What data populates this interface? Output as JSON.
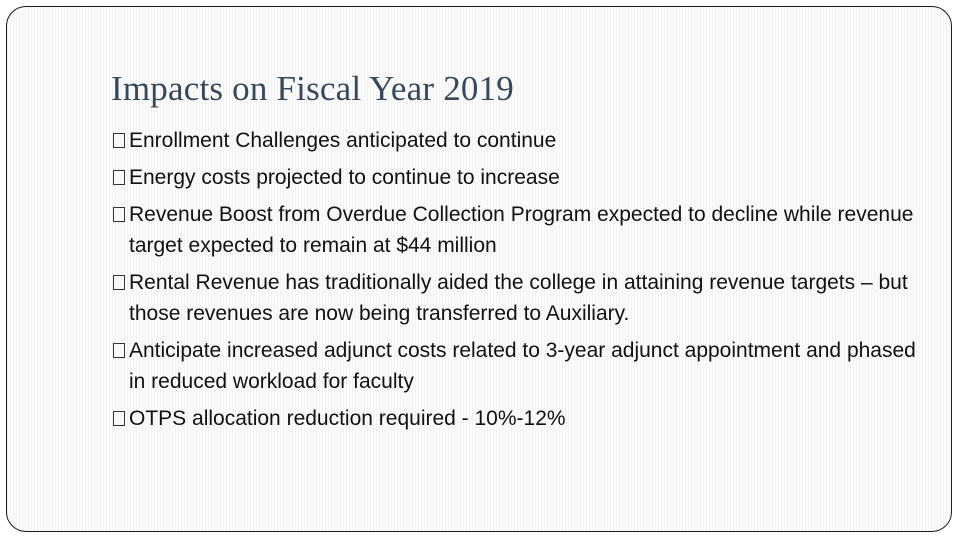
{
  "slide": {
    "title": "Impacts on Fiscal Year 2019",
    "bullets": [
      "Enrollment Challenges anticipated to continue",
      "Energy costs projected to continue to increase",
      "Revenue Boost from Overdue Collection Program expected to decline while revenue target expected to remain at $44 million",
      "Rental Revenue has traditionally aided the college in attaining revenue targets – but those revenues are now being transferred to Auxiliary.",
      "Anticipate increased adjunct costs related to 3-year adjunct appointment and phased in reduced workload for faculty",
      "OTPS allocation reduction required - 10%-12%"
    ]
  },
  "colors": {
    "title": "#35495d",
    "text": "#111111",
    "border": "#1a1a1a"
  },
  "icons": {
    "bullet": "missing-glyph-box"
  }
}
